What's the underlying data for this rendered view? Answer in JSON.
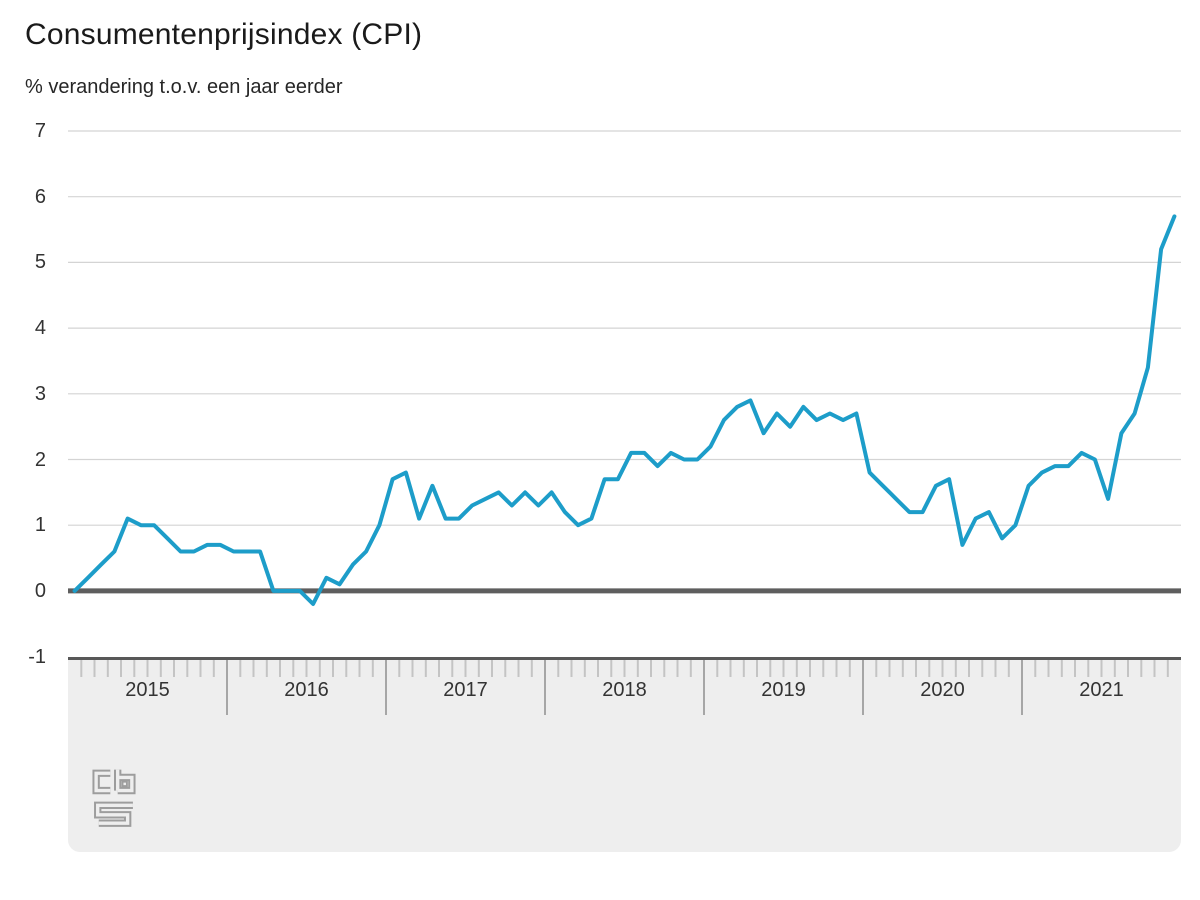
{
  "chart_data": {
    "type": "line",
    "title": "Consumentenprijsindex (CPI)",
    "ylabel": "% verandering t.o.v. een jaar eerder",
    "ylim": [
      -1,
      7
    ],
    "y_ticks": [
      7,
      6,
      5,
      4,
      3,
      2,
      1,
      0,
      -1
    ],
    "grid": "horizontal",
    "legend": "none",
    "zero_line_emphasized": true,
    "frequency": "monthly",
    "categories_years": [
      "2015",
      "2016",
      "2017",
      "2018",
      "2019",
      "2020",
      "2021"
    ],
    "series": [
      {
        "name": "CPI, % verandering t.o.v. een jaar eerder",
        "values_by_year": {
          "2015": [
            0.0,
            0.2,
            0.4,
            0.6,
            1.1,
            1.0,
            1.0,
            0.8,
            0.6,
            0.6,
            0.7,
            0.7
          ],
          "2016": [
            0.6,
            0.6,
            0.6,
            0.0,
            0.0,
            0.0,
            -0.2,
            0.2,
            0.1,
            0.4,
            0.6,
            1.0
          ],
          "2017": [
            1.7,
            1.8,
            1.1,
            1.6,
            1.1,
            1.1,
            1.3,
            1.4,
            1.5,
            1.3,
            1.5,
            1.3
          ],
          "2018": [
            1.5,
            1.2,
            1.0,
            1.1,
            1.7,
            1.7,
            2.1,
            2.1,
            1.9,
            2.1,
            2.0,
            2.0
          ],
          "2019": [
            2.2,
            2.6,
            2.8,
            2.9,
            2.4,
            2.7,
            2.5,
            2.8,
            2.6,
            2.7,
            2.6,
            2.7
          ],
          "2020": [
            1.8,
            1.6,
            1.4,
            1.2,
            1.2,
            1.6,
            1.7,
            0.7,
            1.1,
            1.2,
            0.8,
            1.0
          ],
          "2021": [
            1.6,
            1.8,
            1.9,
            1.9,
            2.1,
            2.0,
            1.4,
            2.4,
            2.7,
            3.4,
            5.2,
            5.7
          ]
        }
      }
    ]
  },
  "branding": {
    "source_logo": "CBS"
  },
  "colors": {
    "line": "#1d9dc9",
    "zero_line": "#5e5e5e",
    "gridline": "#d4d4d4",
    "band_bg": "#eeeeee",
    "band_border": "#585858",
    "month_tick": "#c4c4c4",
    "year_separator": "#a6a6a6",
    "logo": "#9d9d9d",
    "text_primary": "#1a1a1a",
    "text_secondary": "#333333"
  }
}
